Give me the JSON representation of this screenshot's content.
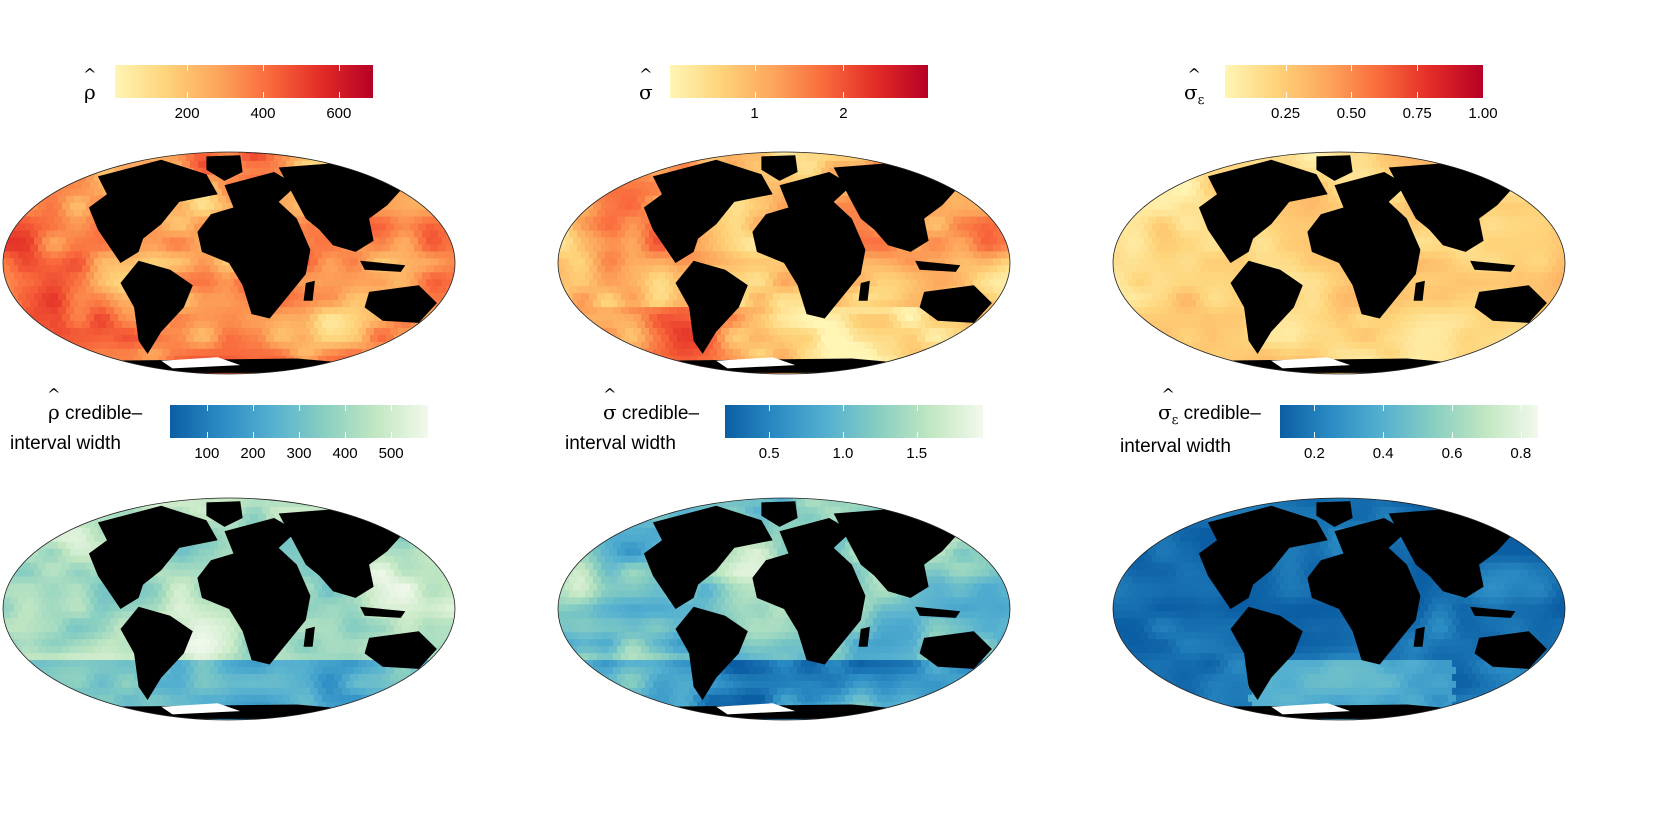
{
  "panels": [
    {
      "id": "rho",
      "legend_title": "ρ",
      "legend_subscript": "",
      "legend_suffix": "",
      "legend_line2": "",
      "ticks": [
        "200",
        "400",
        "600"
      ],
      "tick_values": [
        200,
        400,
        600
      ],
      "range": [
        10,
        690
      ],
      "palette": "YlOrRd",
      "colors": [
        "#fff5b5",
        "#fed379",
        "#fda55b",
        "#f96a3c",
        "#e22b26",
        "#b60026"
      ]
    },
    {
      "id": "sigma",
      "legend_title": "σ",
      "legend_subscript": "",
      "legend_suffix": "",
      "legend_line2": "",
      "ticks": [
        "1",
        "2"
      ],
      "tick_values": [
        1,
        2
      ],
      "range": [
        0.05,
        2.95
      ],
      "palette": "YlOrRd",
      "colors": [
        "#fff5b5",
        "#fed379",
        "#fda55b",
        "#f96a3c",
        "#e22b26",
        "#b60026"
      ]
    },
    {
      "id": "sigma_eps",
      "legend_title": "σ",
      "legend_subscript": "ε",
      "legend_suffix": "",
      "legend_line2": "",
      "ticks": [
        "0.25",
        "0.50",
        "0.75",
        "1.00"
      ],
      "tick_values": [
        0.25,
        0.5,
        0.75,
        1.0
      ],
      "range": [
        0.02,
        1.0
      ],
      "palette": "YlOrRd",
      "colors": [
        "#fff5b5",
        "#fed379",
        "#fda55b",
        "#f96a3c",
        "#e22b26",
        "#b60026"
      ]
    },
    {
      "id": "rho_ci",
      "legend_title": "ρ",
      "legend_subscript": "",
      "legend_suffix": " credible–",
      "legend_line2": "interval width",
      "ticks": [
        "100",
        "200",
        "300",
        "400",
        "500"
      ],
      "tick_values": [
        100,
        200,
        300,
        400,
        500
      ],
      "range": [
        20,
        580
      ],
      "palette": "GnBu-reversed",
      "colors": [
        "#0b5ea3",
        "#2b8cc4",
        "#56b1d0",
        "#89cfc1",
        "#c2e7c2",
        "#f2f9ec"
      ]
    },
    {
      "id": "sigma_ci",
      "legend_title": "σ",
      "legend_subscript": "",
      "legend_suffix": " credible–",
      "legend_line2": "interval width",
      "ticks": [
        "0.5",
        "1.0",
        "1.5"
      ],
      "tick_values": [
        0.5,
        1.0,
        1.5
      ],
      "range": [
        0.2,
        1.95
      ],
      "palette": "GnBu-reversed",
      "colors": [
        "#0b5ea3",
        "#2b8cc4",
        "#56b1d0",
        "#89cfc1",
        "#c2e7c2",
        "#f2f9ec"
      ]
    },
    {
      "id": "sigma_eps_ci",
      "legend_title": "σ",
      "legend_subscript": "ε",
      "legend_suffix": " credible–",
      "legend_line2": "interval width",
      "ticks": [
        "0.2",
        "0.4",
        "0.6",
        "0.8"
      ],
      "tick_values": [
        0.2,
        0.4,
        0.6,
        0.8
      ],
      "range": [
        0.1,
        0.85
      ],
      "palette": "GnBu-reversed",
      "colors": [
        "#0b5ea3",
        "#2b8cc4",
        "#56b1d0",
        "#89cfc1",
        "#c2e7c2",
        "#f2f9ec"
      ]
    }
  ],
  "map": {
    "projection": "Mollweide",
    "land_color": "#000000",
    "antarctica_color": "#ffffff"
  }
}
